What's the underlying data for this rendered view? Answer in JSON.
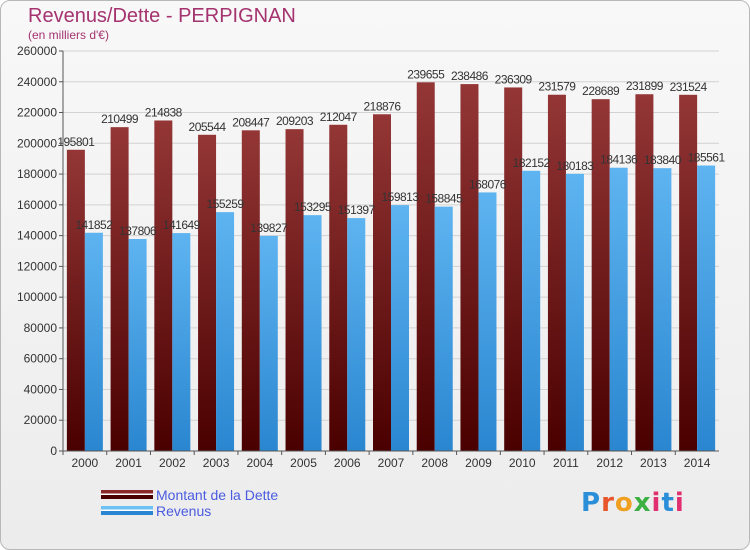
{
  "title": "Revenus/Dette - PERPIGNAN",
  "subtitle": "(en milliers d'€)",
  "colors": {
    "dette": "#7a1a1a",
    "revenus": "#4da6e8",
    "axis_text": "#333333",
    "title": "#a4336f"
  },
  "legend": {
    "dette_label": "Montant de la Dette",
    "revenus_label": "Revenus"
  },
  "logo": {
    "text": "Proxiti",
    "letter_colors": [
      "#2a8fd8",
      "#e8552a",
      "#f0a020",
      "#3cb040",
      "#e03070",
      "#2a8fd8",
      "#e03070"
    ]
  },
  "chart_data": {
    "type": "bar",
    "title": "Revenus/Dette - PERPIGNAN",
    "subtitle": "(en milliers d'€)",
    "categories": [
      "2000",
      "2001",
      "2002",
      "2003",
      "2004",
      "2005",
      "2006",
      "2007",
      "2008",
      "2009",
      "2010",
      "2011",
      "2012",
      "2013",
      "2014"
    ],
    "series": [
      {
        "name": "Montant de la Dette",
        "values": [
          195801,
          210499,
          214838,
          205544,
          208447,
          209203,
          212047,
          218876,
          239655,
          238486,
          236309,
          231579,
          228689,
          231899,
          231524
        ]
      },
      {
        "name": "Revenus",
        "values": [
          141852,
          137806,
          141649,
          155259,
          139827,
          153295,
          151397,
          159813,
          158845,
          168076,
          182152,
          180183,
          184136,
          183840,
          185561
        ]
      }
    ],
    "ylim": [
      0,
      260000
    ],
    "yticks": [
      0,
      20000,
      40000,
      60000,
      80000,
      100000,
      120000,
      140000,
      160000,
      180000,
      200000,
      220000,
      240000,
      260000
    ],
    "grid": true,
    "legend_position": "bottom-left"
  }
}
